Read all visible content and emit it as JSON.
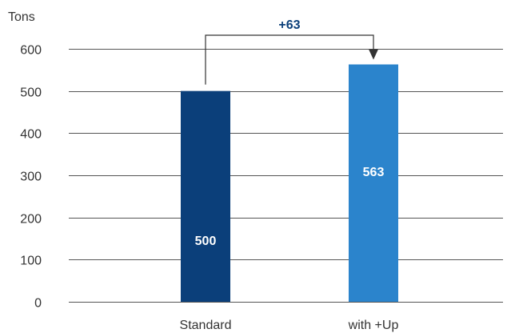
{
  "chart_data": {
    "type": "bar",
    "unit_label": "Tons",
    "categories": [
      "Standard",
      "with +Up"
    ],
    "values": [
      500,
      563
    ],
    "data_labels": [
      "500",
      "563"
    ],
    "bar_colors": [
      "#0b3f7a",
      "#2b84cc"
    ],
    "ylim": [
      0,
      600
    ],
    "yticks": [
      0,
      100,
      200,
      300,
      400,
      500,
      600
    ],
    "grid": true,
    "legend": "none",
    "difference_annotation": {
      "text": "+63",
      "from": "Standard",
      "to": "with +Up"
    }
  },
  "colors": {
    "grid": "#555555",
    "annotation": "#333333",
    "difference_text": "#0b3f7a"
  }
}
